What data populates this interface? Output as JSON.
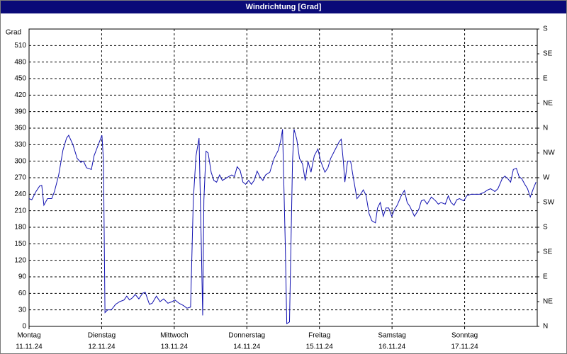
{
  "chart_data": {
    "type": "line",
    "title": "Windrichtung [Grad]",
    "y_label": "Grad",
    "xlim": [
      0,
      168
    ],
    "xticks": [
      {
        "value": 0,
        "label": "Montag",
        "date": "11.11.24"
      },
      {
        "value": 24,
        "label": "Dienstag",
        "date": "12.11.24"
      },
      {
        "value": 48,
        "label": "Mittwoch",
        "date": "13.11.24"
      },
      {
        "value": 72,
        "label": "Donnerstag",
        "date": "14.11.24"
      },
      {
        "value": 96,
        "label": "Freitag",
        "date": "15.11.24"
      },
      {
        "value": 120,
        "label": "Samstag",
        "date": "16.11.24"
      },
      {
        "value": 144,
        "label": "Sonntag",
        "date": "17.11.24"
      }
    ],
    "ylim": [
      0,
      540
    ],
    "yticks": [
      0,
      30,
      60,
      90,
      120,
      150,
      180,
      210,
      240,
      270,
      300,
      330,
      360,
      390,
      420,
      450,
      480,
      510
    ],
    "y2lim": [
      0,
      540
    ],
    "y2ticks": [
      {
        "value": 0,
        "label": "N"
      },
      {
        "value": 45,
        "label": "NE"
      },
      {
        "value": 90,
        "label": "E"
      },
      {
        "value": 135,
        "label": "SE"
      },
      {
        "value": 180,
        "label": "S"
      },
      {
        "value": 225,
        "label": "SW"
      },
      {
        "value": 270,
        "label": "W"
      },
      {
        "value": 315,
        "label": "NW"
      },
      {
        "value": 360,
        "label": "N"
      },
      {
        "value": 405,
        "label": "NE"
      },
      {
        "value": 450,
        "label": "E"
      },
      {
        "value": 495,
        "label": "SE"
      },
      {
        "value": 540,
        "label": "S"
      }
    ],
    "grid": true,
    "series": [
      {
        "color": "#1010b0",
        "x": [
          0,
          0.9,
          2.3,
          3.5,
          4.2,
          4.9,
          6.1,
          7.5,
          8.4,
          9.8,
          11.2,
          12.4,
          13.1,
          14.5,
          15.9,
          17.1,
          18.0,
          19.0,
          20.6,
          21.5,
          22.9,
          24.1,
          24.6,
          25.1,
          26.0,
          27.2,
          28.6,
          30.0,
          31.4,
          32.3,
          33.2,
          34.2,
          35.1,
          36.3,
          37.5,
          38.4,
          39.8,
          40.7,
          42.1,
          43.3,
          44.5,
          45.9,
          47.3,
          48.2,
          49.6,
          51.0,
          52.2,
          53.4,
          54.3,
          55.2,
          56.2,
          56.9,
          57.4,
          57.8,
          58.5,
          59.2,
          60.2,
          61.1,
          62.0,
          63.0,
          63.9,
          64.8,
          66.0,
          67.0,
          67.9,
          68.8,
          69.8,
          70.7,
          71.6,
          72.6,
          73.5,
          74.4,
          75.4,
          76.3,
          77.3,
          78.2,
          79.6,
          81.0,
          82.4,
          83.3,
          83.8,
          84.7,
          85.2,
          86.1,
          87.1,
          87.6,
          88.5,
          89.4,
          90.4,
          91.3,
          92.2,
          93.2,
          94.3,
          95.5,
          96.4,
          97.8,
          98.8,
          99.7,
          101.1,
          102.5,
          103.2,
          103.9,
          104.4,
          105.3,
          106.3,
          107.2,
          108.4,
          109.6,
          110.5,
          111.4,
          112.4,
          113.3,
          114.5,
          115.2,
          116.1,
          117.1,
          118.0,
          118.9,
          119.9,
          120.8,
          121.7,
          123.1,
          124.1,
          125.0,
          125.9,
          127.4,
          128.8,
          129.7,
          130.6,
          131.6,
          133.0,
          134.4,
          135.3,
          136.2,
          137.6,
          138.6,
          139.5,
          140.5,
          141.4,
          142.3,
          143.7,
          144.7,
          146.1,
          147.5,
          148.9,
          150.3,
          151.7,
          152.6,
          154.0,
          155.0,
          156.4,
          157.3,
          158.3,
          159.2,
          160.1,
          161.1,
          162.0,
          162.9,
          163.9,
          164.8,
          165.7,
          166.7,
          167.6
        ],
        "values": [
          232,
          230,
          245,
          255,
          256,
          220,
          232,
          232,
          245,
          275,
          320,
          342,
          347,
          330,
          305,
          298,
          300,
          288,
          285,
          310,
          330,
          347,
          300,
          25,
          30,
          30,
          40,
          45,
          48,
          55,
          48,
          52,
          58,
          50,
          60,
          62,
          40,
          42,
          55,
          45,
          50,
          42,
          45,
          48,
          42,
          38,
          33,
          35,
          230,
          310,
          342,
          160,
          20,
          230,
          318,
          315,
          280,
          265,
          262,
          275,
          265,
          268,
          272,
          275,
          272,
          290,
          283,
          262,
          258,
          265,
          258,
          265,
          282,
          272,
          265,
          275,
          280,
          305,
          320,
          340,
          358,
          150,
          5,
          8,
          300,
          358,
          340,
          305,
          295,
          265,
          300,
          280,
          310,
          322,
          300,
          280,
          288,
          305,
          320,
          335,
          340,
          300,
          262,
          300,
          300,
          270,
          232,
          240,
          248,
          238,
          205,
          192,
          188,
          215,
          225,
          200,
          215,
          215,
          200,
          212,
          220,
          238,
          247,
          225,
          218,
          200,
          212,
          228,
          230,
          222,
          235,
          228,
          222,
          225,
          222,
          237,
          225,
          220,
          230,
          232,
          228,
          237,
          240,
          240,
          240,
          243,
          248,
          250,
          245,
          250,
          268,
          273,
          268,
          262,
          285,
          287,
          272,
          268,
          258,
          250,
          235,
          250,
          262
        ]
      }
    ]
  }
}
